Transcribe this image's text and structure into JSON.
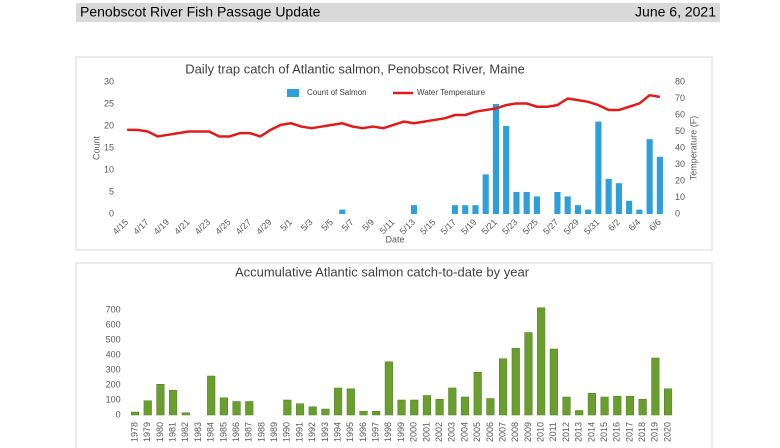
{
  "header": {
    "title": "Penobscot River Fish Passage Update",
    "date": "June 6, 2021"
  },
  "chart_data": [
    {
      "type": "bar",
      "title": "Daily trap catch of Atlantic salmon, Penobscot River, Maine",
      "x_label": "Date",
      "y_label": "Count",
      "y2_label": "Temperature (F)",
      "categories": [
        "4/15",
        null,
        "4/17",
        null,
        "4/19",
        null,
        "4/21",
        null,
        "4/23",
        null,
        "4/25",
        null,
        "4/27",
        null,
        "4/29",
        null,
        "5/1",
        null,
        "5/3",
        null,
        "5/5",
        null,
        "5/7",
        null,
        "5/9",
        null,
        "5/11",
        null,
        "5/13",
        null,
        "5/15",
        null,
        "5/17",
        null,
        "5/19",
        null,
        "5/21",
        null,
        "5/23",
        null,
        "5/25",
        null,
        "5/27",
        null,
        "5/29",
        null,
        "5/31",
        null,
        "6/2",
        null,
        "6/4",
        null,
        "6/6"
      ],
      "series": [
        {
          "name": "Count of Salmon",
          "color": "#2e9fd8",
          "type": "bar",
          "values": [
            0,
            0,
            0,
            0,
            0,
            0,
            0,
            0,
            0,
            0,
            0,
            0,
            0,
            0,
            0,
            0,
            0,
            0,
            0,
            0,
            0,
            1,
            0,
            0,
            0,
            0,
            0,
            0,
            2,
            0,
            0,
            0,
            2,
            2,
            2,
            9,
            25,
            20,
            5,
            5,
            4,
            0,
            5,
            4,
            2,
            1,
            21,
            8,
            7,
            3,
            1,
            17,
            13
          ]
        },
        {
          "name": "Water Temperature",
          "color": "#e01b1b",
          "type": "line",
          "axis": "y2",
          "values": [
            51,
            51,
            50,
            47,
            48,
            49,
            50,
            50,
            50,
            47,
            47,
            49,
            49,
            47,
            51,
            54,
            55,
            53,
            52,
            53,
            54,
            55,
            53,
            52,
            53,
            52,
            54,
            56,
            55,
            56,
            57,
            58,
            60,
            60,
            62,
            63,
            64,
            66,
            67,
            67,
            65,
            65,
            66,
            70,
            69,
            68,
            66,
            63,
            63,
            65,
            67,
            72,
            71
          ]
        }
      ],
      "ylim": [
        0,
        30
      ],
      "yticks": [
        0,
        5,
        10,
        15,
        20,
        25,
        30
      ],
      "y2lim": [
        0,
        80
      ],
      "y2ticks": [
        0,
        10,
        20,
        30,
        40,
        50,
        60,
        70,
        80
      ],
      "grid": false,
      "legend": "top"
    },
    {
      "type": "bar",
      "title": "Accumulative Atlantic salmon catch-to-date by year",
      "categories": [
        "1978",
        "1979",
        "1980",
        "1981",
        "1982",
        "1983",
        "1984",
        "1985",
        "1986",
        "1987",
        "1988",
        "1989",
        "1990",
        "1991",
        "1992",
        "1993",
        "1994",
        "1995",
        "1996",
        "1997",
        "1998",
        "1999",
        "2000",
        "2001",
        "2002",
        "2003",
        "2004",
        "2005",
        "2006",
        "2007",
        "2008",
        "2009",
        "2010",
        "2011",
        "2012",
        "2013",
        "2014",
        "2015",
        "2016",
        "2017",
        "2018",
        "2019",
        "2020"
      ],
      "values": [
        20,
        95,
        205,
        165,
        15,
        0,
        260,
        115,
        90,
        90,
        0,
        0,
        100,
        75,
        55,
        40,
        180,
        175,
        25,
        25,
        355,
        100,
        100,
        130,
        105,
        180,
        120,
        285,
        110,
        375,
        445,
        550,
        715,
        440,
        120,
        30,
        145,
        120,
        125,
        125,
        105,
        380,
        175
      ],
      "color": "#6a9e2f",
      "ylim": [
        0,
        740
      ],
      "yticks": [
        0,
        100,
        200,
        300,
        400,
        500,
        600,
        700
      ],
      "grid": false
    }
  ]
}
